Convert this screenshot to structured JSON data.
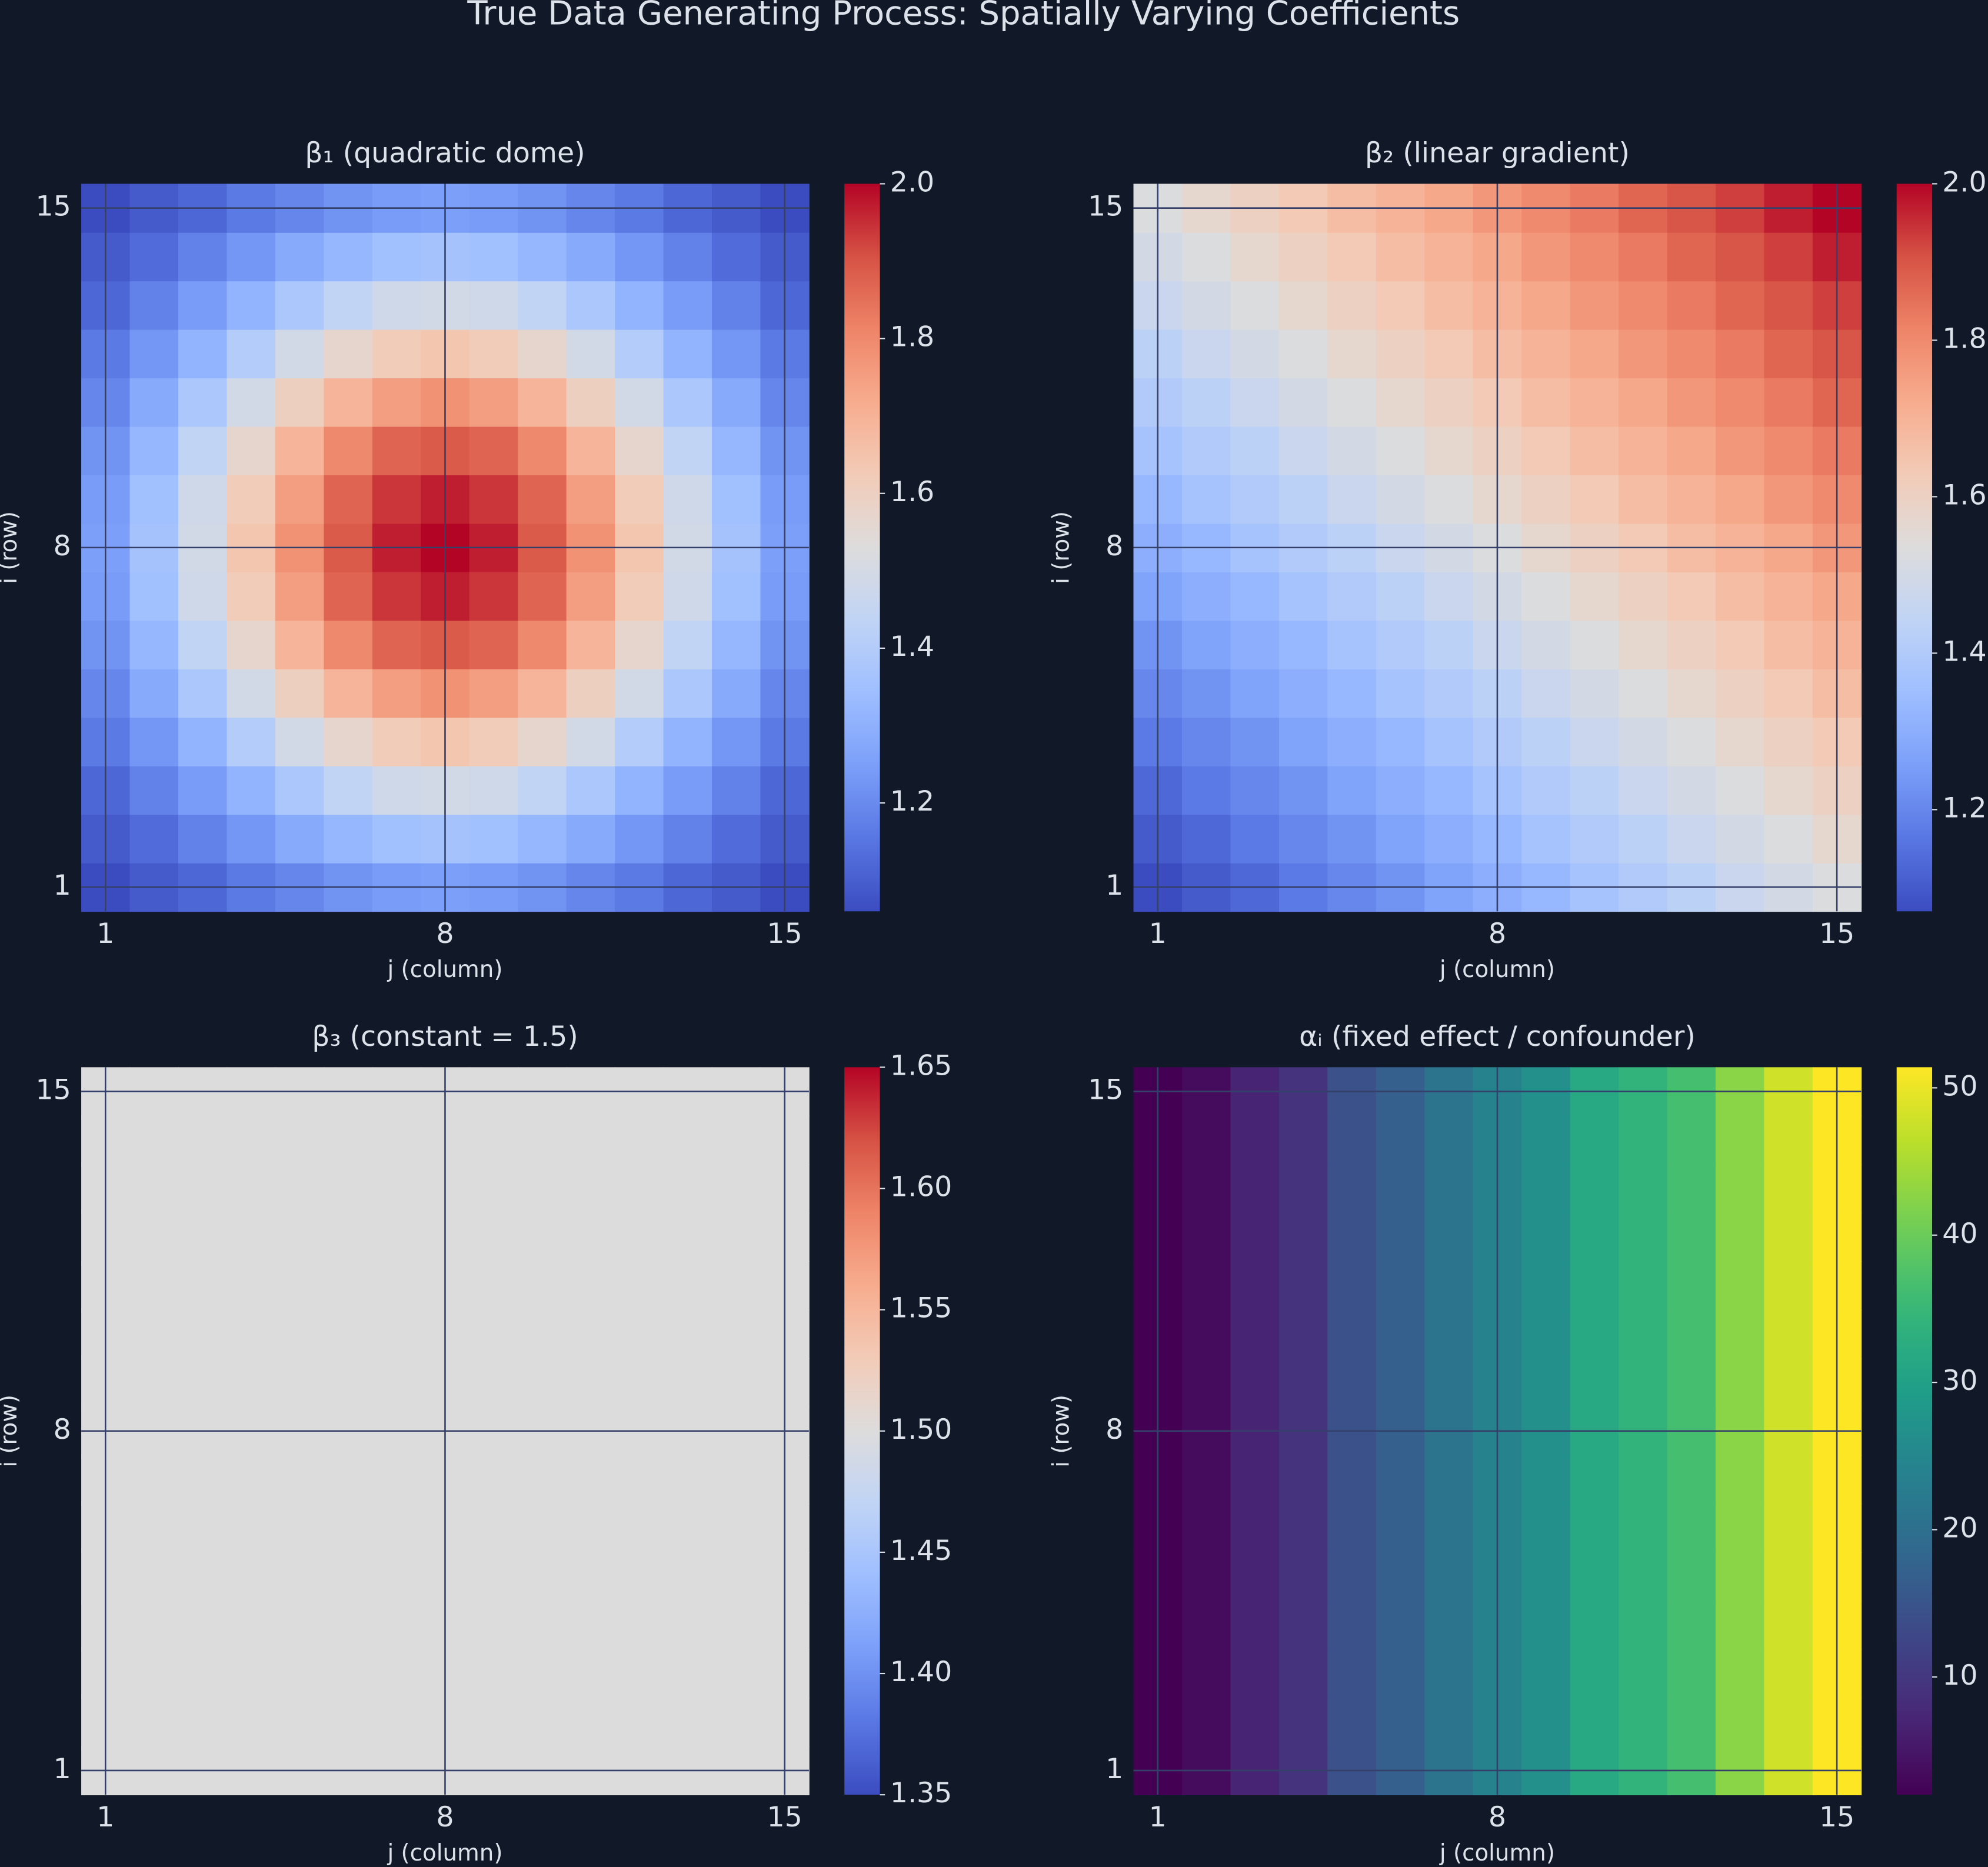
{
  "title": "True Data Generating Process: Spatially Varying Coefficients",
  "chart_data": [
    {
      "type": "heatmap",
      "title": "β₁ (quadratic dome)",
      "x_label": "j (column)",
      "y_label": "i (row)",
      "x": [
        1,
        2,
        3,
        4,
        5,
        6,
        7,
        8,
        9,
        10,
        11,
        12,
        13,
        14,
        15
      ],
      "y": [
        1,
        2,
        3,
        4,
        5,
        6,
        7,
        8,
        9,
        10,
        11,
        12,
        13,
        14,
        15
      ],
      "xlim": [
        0.5,
        15.5
      ],
      "ylim": [
        0.5,
        15.5
      ],
      "xticks": [
        1,
        8,
        15
      ],
      "yticks": [
        1,
        8,
        15
      ],
      "grid": true,
      "colormap": "coolwarm",
      "clim": [
        1.06,
        2
      ],
      "cticks": [
        1.2,
        1.4,
        1.6,
        1.8,
        {
          "value": 2,
          "label": "2.0"
        }
      ],
      "z": [
        [
          1.06,
          1.09,
          1.12,
          1.16,
          1.19,
          1.22,
          1.24,
          1.25,
          1.24,
          1.22,
          1.19,
          1.16,
          1.12,
          1.09,
          1.06
        ],
        [
          1.09,
          1.13,
          1.18,
          1.23,
          1.28,
          1.32,
          1.35,
          1.36,
          1.35,
          1.32,
          1.28,
          1.23,
          1.18,
          1.13,
          1.09
        ],
        [
          1.12,
          1.18,
          1.24,
          1.31,
          1.38,
          1.44,
          1.48,
          1.49,
          1.48,
          1.44,
          1.38,
          1.31,
          1.24,
          1.18,
          1.12
        ],
        [
          1.16,
          1.23,
          1.31,
          1.4,
          1.49,
          1.57,
          1.62,
          1.64,
          1.62,
          1.57,
          1.49,
          1.4,
          1.31,
          1.23,
          1.16
        ],
        [
          1.19,
          1.28,
          1.38,
          1.49,
          1.6,
          1.69,
          1.75,
          1.78,
          1.75,
          1.69,
          1.6,
          1.49,
          1.38,
          1.28,
          1.19
        ],
        [
          1.22,
          1.32,
          1.44,
          1.57,
          1.69,
          1.8,
          1.87,
          1.89,
          1.87,
          1.8,
          1.69,
          1.57,
          1.44,
          1.32,
          1.22
        ],
        [
          1.24,
          1.35,
          1.48,
          1.62,
          1.75,
          1.87,
          1.94,
          1.97,
          1.94,
          1.87,
          1.75,
          1.62,
          1.48,
          1.35,
          1.24
        ],
        [
          1.25,
          1.36,
          1.49,
          1.64,
          1.78,
          1.89,
          1.97,
          2,
          1.97,
          1.89,
          1.78,
          1.64,
          1.49,
          1.36,
          1.25
        ],
        [
          1.24,
          1.35,
          1.48,
          1.62,
          1.75,
          1.87,
          1.94,
          1.97,
          1.94,
          1.87,
          1.75,
          1.62,
          1.48,
          1.35,
          1.24
        ],
        [
          1.22,
          1.32,
          1.44,
          1.57,
          1.69,
          1.8,
          1.87,
          1.89,
          1.87,
          1.8,
          1.69,
          1.57,
          1.44,
          1.32,
          1.22
        ],
        [
          1.19,
          1.28,
          1.38,
          1.49,
          1.6,
          1.69,
          1.75,
          1.78,
          1.75,
          1.69,
          1.6,
          1.49,
          1.38,
          1.28,
          1.19
        ],
        [
          1.16,
          1.23,
          1.31,
          1.4,
          1.49,
          1.57,
          1.62,
          1.64,
          1.62,
          1.57,
          1.49,
          1.4,
          1.31,
          1.23,
          1.16
        ],
        [
          1.12,
          1.18,
          1.24,
          1.31,
          1.38,
          1.44,
          1.48,
          1.49,
          1.48,
          1.44,
          1.38,
          1.31,
          1.24,
          1.18,
          1.12
        ],
        [
          1.09,
          1.13,
          1.18,
          1.23,
          1.28,
          1.32,
          1.35,
          1.36,
          1.35,
          1.32,
          1.28,
          1.23,
          1.18,
          1.13,
          1.09
        ],
        [
          1.06,
          1.09,
          1.12,
          1.16,
          1.19,
          1.22,
          1.24,
          1.25,
          1.24,
          1.22,
          1.19,
          1.16,
          1.12,
          1.09,
          1.06
        ]
      ]
    },
    {
      "type": "heatmap",
      "title": "β₂ (linear gradient)",
      "x_label": "j (column)",
      "y_label": "i (row)",
      "x": [
        1,
        2,
        3,
        4,
        5,
        6,
        7,
        8,
        9,
        10,
        11,
        12,
        13,
        14,
        15
      ],
      "y": [
        1,
        2,
        3,
        4,
        5,
        6,
        7,
        8,
        9,
        10,
        11,
        12,
        13,
        14,
        15
      ],
      "xlim": [
        0.5,
        15.5
      ],
      "ylim": [
        0.5,
        15.5
      ],
      "xticks": [
        1,
        8,
        15
      ],
      "yticks": [
        1,
        8,
        15
      ],
      "grid": true,
      "colormap": "coolwarm",
      "clim": [
        1.07,
        2
      ],
      "cticks": [
        1.2,
        1.4,
        1.6,
        1.8,
        {
          "value": 2,
          "label": "2.0"
        }
      ],
      "z": [
        [
          1.07,
          1.1,
          1.13,
          1.17,
          1.2,
          1.23,
          1.27,
          1.3,
          1.33,
          1.37,
          1.4,
          1.43,
          1.47,
          1.5,
          1.53
        ],
        [
          1.1,
          1.13,
          1.17,
          1.2,
          1.23,
          1.27,
          1.3,
          1.33,
          1.37,
          1.4,
          1.43,
          1.47,
          1.5,
          1.53,
          1.57
        ],
        [
          1.13,
          1.17,
          1.2,
          1.23,
          1.27,
          1.3,
          1.33,
          1.37,
          1.4,
          1.43,
          1.47,
          1.5,
          1.53,
          1.57,
          1.6
        ],
        [
          1.17,
          1.2,
          1.23,
          1.27,
          1.3,
          1.33,
          1.37,
          1.4,
          1.43,
          1.47,
          1.5,
          1.53,
          1.57,
          1.6,
          1.63
        ],
        [
          1.2,
          1.23,
          1.27,
          1.3,
          1.33,
          1.37,
          1.4,
          1.43,
          1.47,
          1.5,
          1.53,
          1.57,
          1.6,
          1.63,
          1.67
        ],
        [
          1.23,
          1.27,
          1.3,
          1.33,
          1.37,
          1.4,
          1.43,
          1.47,
          1.5,
          1.53,
          1.57,
          1.6,
          1.63,
          1.67,
          1.7
        ],
        [
          1.27,
          1.3,
          1.33,
          1.37,
          1.4,
          1.43,
          1.47,
          1.5,
          1.53,
          1.57,
          1.6,
          1.63,
          1.67,
          1.7,
          1.73
        ],
        [
          1.3,
          1.33,
          1.37,
          1.4,
          1.43,
          1.47,
          1.5,
          1.53,
          1.57,
          1.6,
          1.63,
          1.67,
          1.7,
          1.73,
          1.77
        ],
        [
          1.33,
          1.37,
          1.4,
          1.43,
          1.47,
          1.5,
          1.53,
          1.57,
          1.6,
          1.63,
          1.67,
          1.7,
          1.73,
          1.77,
          1.8
        ],
        [
          1.37,
          1.4,
          1.43,
          1.47,
          1.5,
          1.53,
          1.57,
          1.6,
          1.63,
          1.67,
          1.7,
          1.73,
          1.77,
          1.8,
          1.83
        ],
        [
          1.4,
          1.43,
          1.47,
          1.5,
          1.53,
          1.57,
          1.6,
          1.63,
          1.67,
          1.7,
          1.73,
          1.77,
          1.8,
          1.83,
          1.87
        ],
        [
          1.43,
          1.47,
          1.5,
          1.53,
          1.57,
          1.6,
          1.63,
          1.67,
          1.7,
          1.73,
          1.77,
          1.8,
          1.83,
          1.87,
          1.9
        ],
        [
          1.47,
          1.5,
          1.53,
          1.57,
          1.6,
          1.63,
          1.67,
          1.7,
          1.73,
          1.77,
          1.8,
          1.83,
          1.87,
          1.9,
          1.93
        ],
        [
          1.5,
          1.53,
          1.57,
          1.6,
          1.63,
          1.67,
          1.7,
          1.73,
          1.77,
          1.8,
          1.83,
          1.87,
          1.9,
          1.93,
          1.97
        ],
        [
          1.53,
          1.57,
          1.6,
          1.63,
          1.67,
          1.7,
          1.73,
          1.77,
          1.8,
          1.83,
          1.87,
          1.9,
          1.93,
          1.97,
          2
        ]
      ]
    },
    {
      "type": "heatmap",
      "title": "β₃ (constant = 1.5)",
      "x_label": "j (column)",
      "y_label": "i (row)",
      "x": [
        1,
        2,
        3,
        4,
        5,
        6,
        7,
        8,
        9,
        10,
        11,
        12,
        13,
        14,
        15
      ],
      "y": [
        1,
        2,
        3,
        4,
        5,
        6,
        7,
        8,
        9,
        10,
        11,
        12,
        13,
        14,
        15
      ],
      "xlim": [
        0.5,
        15.5
      ],
      "ylim": [
        0.5,
        15.5
      ],
      "xticks": [
        1,
        8,
        15
      ],
      "yticks": [
        1,
        8,
        15
      ],
      "grid": true,
      "colormap": "coolwarm",
      "clim": [
        1.35,
        1.65
      ],
      "cticks": [
        1.35,
        {
          "value": 1.4,
          "label": "1.40"
        },
        1.45,
        {
          "value": 1.5,
          "label": "1.50"
        },
        1.55,
        {
          "value": 1.6,
          "label": "1.60"
        },
        1.65
      ],
      "z": [
        [
          1.5,
          1.5,
          1.5,
          1.5,
          1.5,
          1.5,
          1.5,
          1.5,
          1.5,
          1.5,
          1.5,
          1.5,
          1.5,
          1.5,
          1.5
        ],
        [
          1.5,
          1.5,
          1.5,
          1.5,
          1.5,
          1.5,
          1.5,
          1.5,
          1.5,
          1.5,
          1.5,
          1.5,
          1.5,
          1.5,
          1.5
        ],
        [
          1.5,
          1.5,
          1.5,
          1.5,
          1.5,
          1.5,
          1.5,
          1.5,
          1.5,
          1.5,
          1.5,
          1.5,
          1.5,
          1.5,
          1.5
        ],
        [
          1.5,
          1.5,
          1.5,
          1.5,
          1.5,
          1.5,
          1.5,
          1.5,
          1.5,
          1.5,
          1.5,
          1.5,
          1.5,
          1.5,
          1.5
        ],
        [
          1.5,
          1.5,
          1.5,
          1.5,
          1.5,
          1.5,
          1.5,
          1.5,
          1.5,
          1.5,
          1.5,
          1.5,
          1.5,
          1.5,
          1.5
        ],
        [
          1.5,
          1.5,
          1.5,
          1.5,
          1.5,
          1.5,
          1.5,
          1.5,
          1.5,
          1.5,
          1.5,
          1.5,
          1.5,
          1.5,
          1.5
        ],
        [
          1.5,
          1.5,
          1.5,
          1.5,
          1.5,
          1.5,
          1.5,
          1.5,
          1.5,
          1.5,
          1.5,
          1.5,
          1.5,
          1.5,
          1.5
        ],
        [
          1.5,
          1.5,
          1.5,
          1.5,
          1.5,
          1.5,
          1.5,
          1.5,
          1.5,
          1.5,
          1.5,
          1.5,
          1.5,
          1.5,
          1.5
        ],
        [
          1.5,
          1.5,
          1.5,
          1.5,
          1.5,
          1.5,
          1.5,
          1.5,
          1.5,
          1.5,
          1.5,
          1.5,
          1.5,
          1.5,
          1.5
        ],
        [
          1.5,
          1.5,
          1.5,
          1.5,
          1.5,
          1.5,
          1.5,
          1.5,
          1.5,
          1.5,
          1.5,
          1.5,
          1.5,
          1.5,
          1.5
        ],
        [
          1.5,
          1.5,
          1.5,
          1.5,
          1.5,
          1.5,
          1.5,
          1.5,
          1.5,
          1.5,
          1.5,
          1.5,
          1.5,
          1.5,
          1.5
        ],
        [
          1.5,
          1.5,
          1.5,
          1.5,
          1.5,
          1.5,
          1.5,
          1.5,
          1.5,
          1.5,
          1.5,
          1.5,
          1.5,
          1.5,
          1.5
        ],
        [
          1.5,
          1.5,
          1.5,
          1.5,
          1.5,
          1.5,
          1.5,
          1.5,
          1.5,
          1.5,
          1.5,
          1.5,
          1.5,
          1.5,
          1.5
        ],
        [
          1.5,
          1.5,
          1.5,
          1.5,
          1.5,
          1.5,
          1.5,
          1.5,
          1.5,
          1.5,
          1.5,
          1.5,
          1.5,
          1.5,
          1.5
        ],
        [
          1.5,
          1.5,
          1.5,
          1.5,
          1.5,
          1.5,
          1.5,
          1.5,
          1.5,
          1.5,
          1.5,
          1.5,
          1.5,
          1.5,
          1.5
        ]
      ]
    },
    {
      "type": "heatmap",
      "title": "αᵢ (fixed effect / confounder)",
      "x_label": "j (column)",
      "y_label": "i (row)",
      "x": [
        1,
        2,
        3,
        4,
        5,
        6,
        7,
        8,
        9,
        10,
        11,
        12,
        13,
        14,
        15
      ],
      "y": [
        1,
        2,
        3,
        4,
        5,
        6,
        7,
        8,
        9,
        10,
        11,
        12,
        13,
        14,
        15
      ],
      "xlim": [
        0.5,
        15.5
      ],
      "ylim": [
        0.5,
        15.5
      ],
      "xticks": [
        1,
        8,
        15
      ],
      "yticks": [
        1,
        8,
        15
      ],
      "grid": true,
      "colormap": "viridis",
      "clim": [
        2,
        51.4
      ],
      "cticks": [
        10,
        20,
        30,
        40,
        50
      ],
      "z": [
        [
          2,
          3.5,
          6.9,
          9.4,
          14.4,
          16.8,
          20.8,
          24.2,
          26.7,
          31.6,
          34.1,
          36.6,
          42.5,
          48,
          51.4
        ],
        [
          2,
          3.5,
          6.9,
          9.4,
          14.4,
          16.8,
          20.8,
          24.2,
          26.7,
          31.6,
          34.1,
          36.6,
          42.5,
          48,
          51.4
        ],
        [
          2,
          3.5,
          6.9,
          9.4,
          14.4,
          16.8,
          20.8,
          24.2,
          26.7,
          31.6,
          34.1,
          36.6,
          42.5,
          48,
          51.4
        ],
        [
          2,
          3.5,
          6.9,
          9.4,
          14.4,
          16.8,
          20.8,
          24.2,
          26.7,
          31.6,
          34.1,
          36.6,
          42.5,
          48,
          51.4
        ],
        [
          2,
          3.5,
          6.9,
          9.4,
          14.4,
          16.8,
          20.8,
          24.2,
          26.7,
          31.6,
          34.1,
          36.6,
          42.5,
          48,
          51.4
        ],
        [
          2,
          3.5,
          6.9,
          9.4,
          14.4,
          16.8,
          20.8,
          24.2,
          26.7,
          31.6,
          34.1,
          36.6,
          42.5,
          48,
          51.4
        ],
        [
          2,
          3.5,
          6.9,
          9.4,
          14.4,
          16.8,
          20.8,
          24.2,
          26.7,
          31.6,
          34.1,
          36.6,
          42.5,
          48,
          51.4
        ],
        [
          2,
          3.5,
          6.9,
          9.4,
          14.4,
          16.8,
          20.8,
          24.2,
          26.7,
          31.6,
          34.1,
          36.6,
          42.5,
          48,
          51.4
        ],
        [
          2,
          3.5,
          6.9,
          9.4,
          14.4,
          16.8,
          20.8,
          24.2,
          26.7,
          31.6,
          34.1,
          36.6,
          42.5,
          48,
          51.4
        ],
        [
          2,
          3.5,
          6.9,
          9.4,
          14.4,
          16.8,
          20.8,
          24.2,
          26.7,
          31.6,
          34.1,
          36.6,
          42.5,
          48,
          51.4
        ],
        [
          2,
          3.5,
          6.9,
          9.4,
          14.4,
          16.8,
          20.8,
          24.2,
          26.7,
          31.6,
          34.1,
          36.6,
          42.5,
          48,
          51.4
        ],
        [
          2,
          3.5,
          6.9,
          9.4,
          14.4,
          16.8,
          20.8,
          24.2,
          26.7,
          31.6,
          34.1,
          36.6,
          42.5,
          48,
          51.4
        ],
        [
          2,
          3.5,
          6.9,
          9.4,
          14.4,
          16.8,
          20.8,
          24.2,
          26.7,
          31.6,
          34.1,
          36.6,
          42.5,
          48,
          51.4
        ],
        [
          2,
          3.5,
          6.9,
          9.4,
          14.4,
          16.8,
          20.8,
          24.2,
          26.7,
          31.6,
          34.1,
          36.6,
          42.5,
          48,
          51.4
        ],
        [
          2,
          3.5,
          6.9,
          9.4,
          14.4,
          16.8,
          20.8,
          24.2,
          26.7,
          31.6,
          34.1,
          36.6,
          42.5,
          48,
          51.4
        ]
      ]
    }
  ]
}
